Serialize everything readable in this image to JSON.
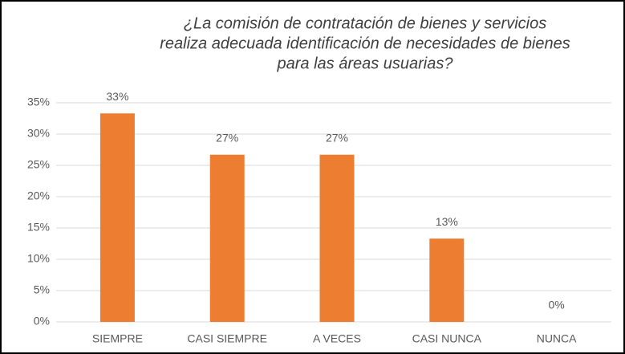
{
  "chart_data": {
    "type": "bar",
    "title": [
      "¿La comisión de contratación de bienes y servicios",
      "realiza adecuada identificación de necesidades de bienes",
      "para las áreas usuarias?"
    ],
    "categories": [
      "SIEMPRE",
      "CASI SIEMPRE",
      "A VECES",
      "CASI NUNCA",
      "NUNCA"
    ],
    "values": [
      33.3,
      26.7,
      26.7,
      13.3,
      0
    ],
    "value_labels": [
      "33%",
      "27%",
      "27%",
      "13%",
      "0%"
    ],
    "color": "#ed7d31",
    "ylim": [
      0,
      35
    ],
    "yticks": [
      {
        "value": 0,
        "label": "0%"
      },
      {
        "value": 5,
        "label": "5%"
      },
      {
        "value": 10,
        "label": "10%"
      },
      {
        "value": 15,
        "label": "15%"
      },
      {
        "value": 20,
        "label": "20%"
      },
      {
        "value": 25,
        "label": "25%"
      },
      {
        "value": 30,
        "label": "30%"
      },
      {
        "value": 35,
        "label": "35%"
      }
    ],
    "grid": true
  }
}
